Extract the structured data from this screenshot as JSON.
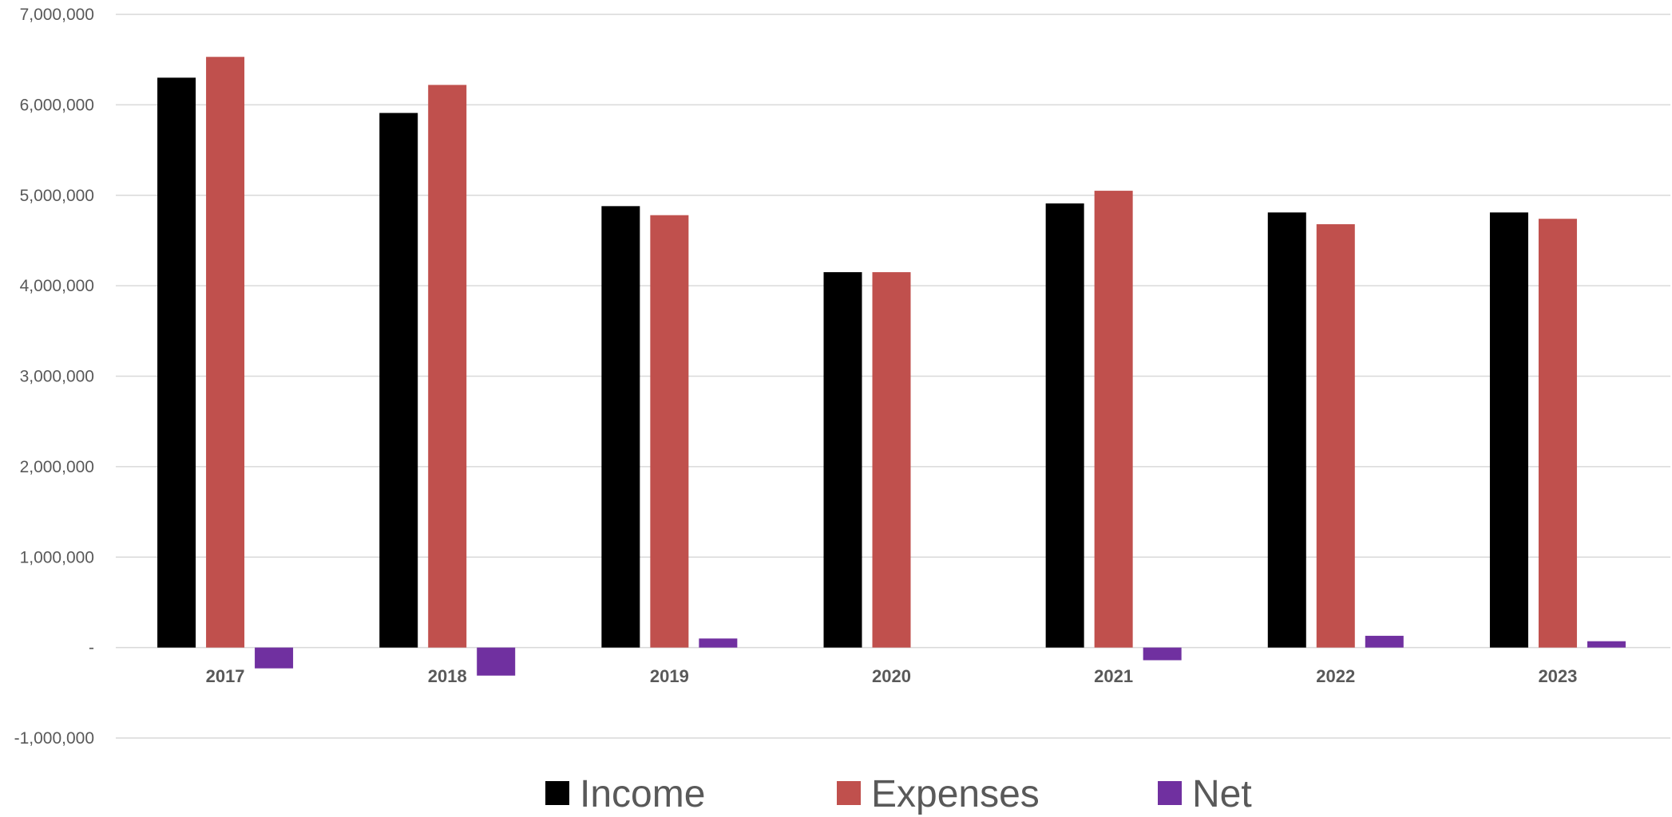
{
  "chart_data": {
    "type": "bar",
    "categories": [
      "2017",
      "2018",
      "2019",
      "2020",
      "2021",
      "2022",
      "2023"
    ],
    "series": [
      {
        "name": "Income",
        "color": "#000000",
        "values": [
          6300000,
          5910000,
          4880000,
          4150000,
          4910000,
          4810000,
          4810000
        ]
      },
      {
        "name": "Expenses",
        "color": "#c0504d",
        "values": [
          6530000,
          6220000,
          4780000,
          4150000,
          5050000,
          4680000,
          4740000
        ]
      },
      {
        "name": "Net",
        "color": "#7030a0",
        "values": [
          -230000,
          -310000,
          100000,
          0,
          -140000,
          130000,
          70000
        ]
      }
    ],
    "ylim": [
      -1000000,
      7000000
    ],
    "yticks": [
      7000000,
      6000000,
      5000000,
      4000000,
      3000000,
      2000000,
      1000000,
      0,
      -1000000
    ],
    "ytick_labels": [
      "7,000,000",
      "6,000,000",
      "5,000,000",
      "4,000,000",
      "3,000,000",
      "2,000,000",
      "1,000,000",
      "-",
      "-1,000,000"
    ],
    "grid": true,
    "legend_position": "bottom"
  }
}
